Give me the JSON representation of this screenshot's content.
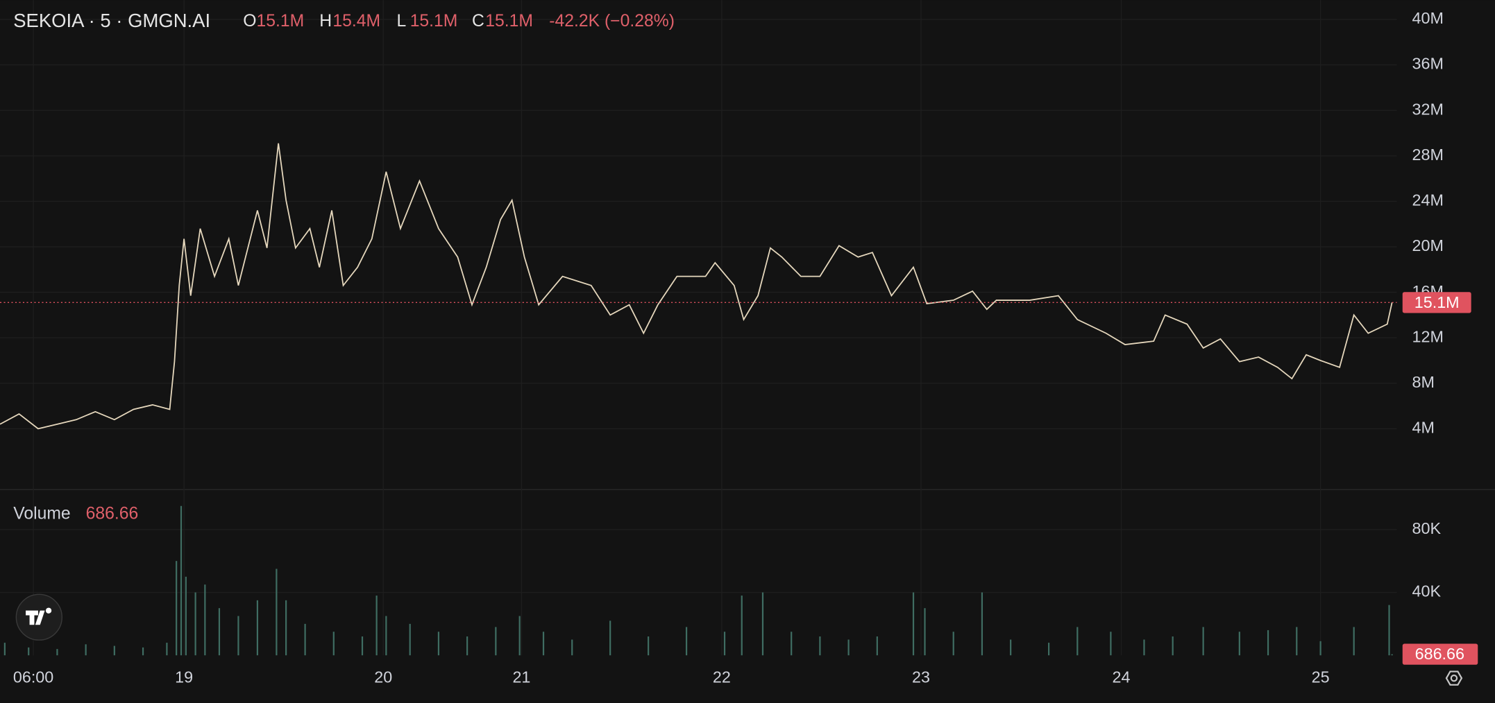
{
  "chart_data": [
    {
      "type": "line",
      "title": "SEKOIA · 5 · GMGN.AI",
      "ohlc": [
        {
          "label": "O",
          "value": "15.1M"
        },
        {
          "label": "H",
          "value": "15.4M"
        },
        {
          "label": "L",
          "value": "15.1M"
        },
        {
          "label": "C",
          "value": "15.1M"
        }
      ],
      "change": "-42.2K (−0.28%)",
      "last_price": 15100000,
      "last_price_label": "15.1M",
      "xlim": [
        0,
        1465
      ],
      "xticks": [
        {
          "value": 35,
          "label": "06:00"
        },
        {
          "value": 193,
          "label": "19"
        },
        {
          "value": 402,
          "label": "20"
        },
        {
          "value": 547,
          "label": "21"
        },
        {
          "value": 757,
          "label": "22"
        },
        {
          "value": 966,
          "label": "23"
        },
        {
          "value": 1176,
          "label": "24"
        },
        {
          "value": 1385,
          "label": "25"
        }
      ],
      "ylim": [
        -1270000,
        41700000
      ],
      "yticks": [
        {
          "value": 4000000,
          "label": "4M"
        },
        {
          "value": 8000000,
          "label": "8M"
        },
        {
          "value": 12000000,
          "label": "12M"
        },
        {
          "value": 16000000,
          "label": "16M"
        },
        {
          "value": 20000000,
          "label": "20M"
        },
        {
          "value": 24000000,
          "label": "24M"
        },
        {
          "value": 28000000,
          "label": "28M"
        },
        {
          "value": 32000000,
          "label": "32M"
        },
        {
          "value": 36000000,
          "label": "36M"
        },
        {
          "value": 40000000,
          "label": "40M"
        }
      ],
      "grid": true,
      "x": [
        0,
        20,
        40,
        60,
        80,
        100,
        120,
        140,
        160,
        178,
        183,
        188,
        193,
        200,
        210,
        225,
        240,
        250,
        270,
        280,
        292,
        300,
        310,
        325,
        335,
        348,
        360,
        375,
        390,
        405,
        420,
        440,
        460,
        480,
        495,
        510,
        525,
        537,
        550,
        565,
        590,
        620,
        640,
        660,
        675,
        690,
        710,
        740,
        750,
        770,
        780,
        795,
        808,
        820,
        840,
        860,
        880,
        900,
        915,
        935,
        958,
        972,
        1000,
        1020,
        1035,
        1045,
        1080,
        1110,
        1130,
        1160,
        1180,
        1210,
        1222,
        1245,
        1262,
        1280,
        1300,
        1320,
        1340,
        1355,
        1370,
        1385,
        1405,
        1420,
        1435,
        1455,
        1460
      ],
      "series": [
        {
          "name": "SEKOIA",
          "color": "#e6d8bd",
          "values": [
            4400000,
            5300000,
            4000000,
            4400000,
            4800000,
            5500000,
            4800000,
            5700000,
            6100000,
            5700000,
            9900000,
            16600000,
            20700000,
            15700000,
            21600000,
            17400000,
            20700000,
            16600000,
            23200000,
            19900000,
            29100000,
            24100000,
            19900000,
            21600000,
            18200000,
            23200000,
            16600000,
            18200000,
            20700000,
            26600000,
            21600000,
            25800000,
            21600000,
            19100000,
            14900000,
            18200000,
            22400000,
            24100000,
            19100000,
            14900000,
            17400000,
            16600000,
            14000000,
            14900000,
            12400000,
            14900000,
            17400000,
            17400000,
            18600000,
            16600000,
            13600000,
            15700000,
            19900000,
            19100000,
            17400000,
            17400000,
            20100000,
            19100000,
            19500000,
            15700000,
            18200000,
            15000000,
            15300000,
            16100000,
            14500000,
            15300000,
            15300000,
            15700000,
            13600000,
            12400000,
            11400000,
            11700000,
            14000000,
            13200000,
            11100000,
            11900000,
            9900000,
            10300000,
            9400000,
            8400000,
            10500000,
            10000000,
            9400000,
            14000000,
            12400000,
            13200000,
            15100000
          ]
        }
      ]
    },
    {
      "type": "bar",
      "title": "Volume",
      "last_value": 686.66,
      "last_value_label": "686.66",
      "xlim": [
        0,
        1465
      ],
      "ylim": [
        0,
        104800
      ],
      "yticks": [
        {
          "value": 40000,
          "label": "40K"
        },
        {
          "value": 80000,
          "label": "80K"
        }
      ],
      "grid": true,
      "x": [
        5,
        30,
        60,
        90,
        120,
        150,
        175,
        185,
        190,
        195,
        205,
        215,
        230,
        250,
        270,
        290,
        300,
        320,
        350,
        380,
        395,
        405,
        430,
        460,
        490,
        520,
        545,
        570,
        600,
        640,
        680,
        720,
        760,
        778,
        800,
        830,
        860,
        890,
        920,
        958,
        970,
        1000,
        1030,
        1060,
        1100,
        1130,
        1165,
        1200,
        1230,
        1262,
        1300,
        1330,
        1360,
        1385,
        1420,
        1457,
        1460
      ],
      "series": [
        {
          "name": "Volume",
          "color": "#3f6d62",
          "values": [
            8000,
            5000,
            4000,
            7000,
            6000,
            5000,
            8000,
            60000,
            95000,
            50000,
            40000,
            45000,
            30000,
            25000,
            35000,
            55000,
            35000,
            20000,
            15000,
            12000,
            38000,
            25000,
            20000,
            15000,
            12000,
            18000,
            25000,
            15000,
            10000,
            22000,
            12000,
            18000,
            15000,
            38000,
            40000,
            15000,
            12000,
            10000,
            12000,
            40000,
            30000,
            15000,
            40000,
            10000,
            8000,
            18000,
            15000,
            10000,
            12000,
            18000,
            15000,
            16000,
            18000,
            9000,
            18000,
            32000,
            686.66
          ]
        }
      ]
    }
  ]
}
